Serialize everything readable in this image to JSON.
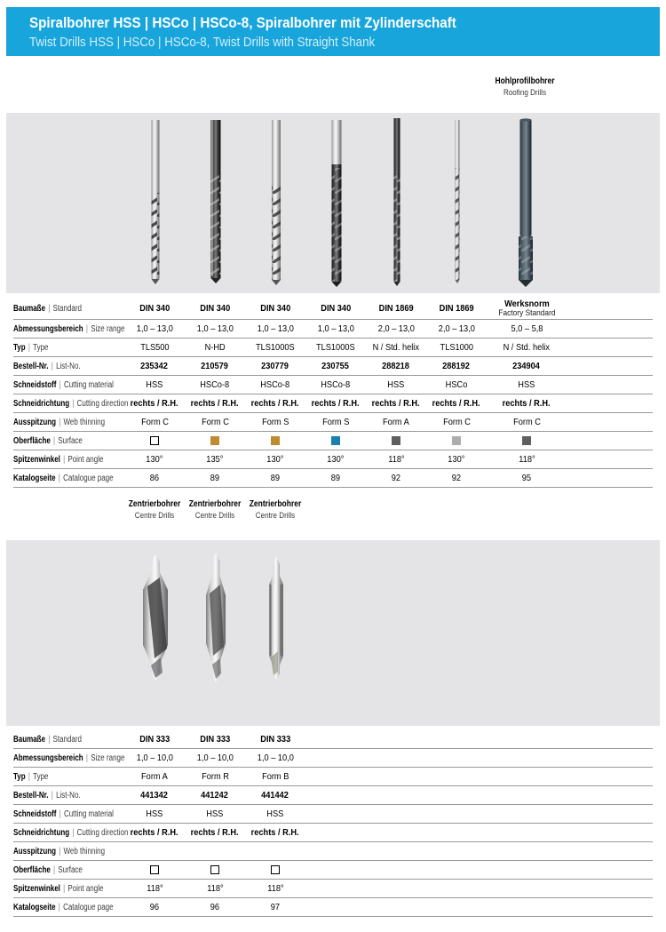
{
  "sep": "|",
  "header": {
    "title_de": "Spiralbohrer HSS | HSCo | HSCo-8, Spiralbohrer mit Zylinderschaft",
    "title_en": "Twist Drills HSS | HSCo | HSCo-8, Twist Drills with Straight Shank",
    "accent": "#18A5DC"
  },
  "labels": {
    "roofing_de": "Hohlprofilbohrer",
    "roofing_en": "Roofing Drills",
    "centre_de": "Zentrierbohrer",
    "centre_en": "Centre Drills"
  },
  "table1": {
    "col_count": 7,
    "rows": [
      {
        "de": "Baumaße",
        "en": "Standard",
        "type": "text",
        "bold": true,
        "values": [
          "DIN 340",
          "DIN 340",
          "DIN 340",
          "DIN 340",
          "DIN 1869",
          "DIN 1869",
          {
            "de": "Werksnorm",
            "en": "Factory Standard"
          }
        ]
      },
      {
        "de": "Abmessungsbereich",
        "en": "Size range",
        "type": "text",
        "bold": false,
        "values": [
          "1,0 – 13,0",
          "1,0 – 13,0",
          "1,0 – 13,0",
          "1,0 – 13,0",
          "2,0 – 13,0",
          "2,0 – 13,0",
          "5,0 – 5,8"
        ]
      },
      {
        "de": "Typ",
        "en": "Type",
        "type": "text",
        "bold": false,
        "values": [
          "TLS500",
          "N-HD",
          "TLS1000S",
          "TLS1000S",
          "N / Std. helix",
          "TLS1000",
          "N / Std. helix"
        ]
      },
      {
        "de": "Bestell-Nr.",
        "en": "List-No.",
        "type": "text",
        "bold": true,
        "values": [
          "235342",
          "210579",
          "230779",
          "230755",
          "288218",
          "288192",
          "234904"
        ]
      },
      {
        "de": "Schneidstoff",
        "en": "Cutting material",
        "type": "text",
        "bold": false,
        "values": [
          "HSS",
          "HSCo-8",
          "HSCo-8",
          "HSCo-8",
          "HSS",
          "HSCo",
          "HSS"
        ]
      },
      {
        "de": "Schneidrichtung",
        "en": "Cutting direction",
        "type": "text",
        "bold": true,
        "values": [
          "rechts / R.H.",
          "rechts / R.H.",
          "rechts / R.H.",
          "rechts / R.H.",
          "rechts / R.H.",
          "rechts / R.H.",
          "rechts / R.H."
        ]
      },
      {
        "de": "Ausspitzung",
        "en": "Web thinning",
        "type": "text",
        "bold": false,
        "values": [
          "Form C",
          "Form C",
          "Form S",
          "Form S",
          "Form A",
          "Form C",
          "Form C"
        ]
      },
      {
        "de": "Oberfläche",
        "en": "Surface",
        "type": "swatch",
        "bold": false,
        "values": [
          "#FFFFFF",
          "#BE8B31",
          "#BE8B31",
          "#1B7FAF",
          "#5F5F5F",
          "#ADADAD",
          "#5F5F5F"
        ]
      },
      {
        "de": "Spitzenwinkel",
        "en": "Point angle",
        "type": "text",
        "bold": false,
        "values": [
          "130°",
          "135°",
          "130°",
          "130°",
          "118°",
          "130°",
          "118°"
        ]
      },
      {
        "de": "Katalogseite",
        "en": "Catalogue page",
        "type": "text",
        "bold": false,
        "values": [
          "86",
          "89",
          "89",
          "89",
          "92",
          "92",
          "95"
        ]
      }
    ]
  },
  "table2": {
    "col_count": 7,
    "rows": [
      {
        "de": "Baumaße",
        "en": "Standard",
        "type": "text",
        "bold": true,
        "values": [
          "DIN 333",
          "DIN 333",
          "DIN 333"
        ]
      },
      {
        "de": "Abmessungsbereich",
        "en": "Size range",
        "type": "text",
        "bold": false,
        "values": [
          "1,0 – 10,0",
          "1,0 – 10,0",
          "1,0 – 10,0"
        ]
      },
      {
        "de": "Typ",
        "en": "Type",
        "type": "text",
        "bold": false,
        "values": [
          "Form A",
          "Form R",
          "Form B"
        ]
      },
      {
        "de": "Bestell-Nr.",
        "en": "List-No.",
        "type": "text",
        "bold": true,
        "values": [
          "441342",
          "441242",
          "441442"
        ]
      },
      {
        "de": "Schneidstoff",
        "en": "Cutting material",
        "type": "text",
        "bold": false,
        "values": [
          "HSS",
          "HSS",
          "HSS"
        ]
      },
      {
        "de": "Schneidrichtung",
        "en": "Cutting direction",
        "type": "text",
        "bold": true,
        "values": [
          "rechts / R.H.",
          "rechts / R.H.",
          "rechts / R.H."
        ]
      },
      {
        "de": "Ausspitzung",
        "en": "Web thinning",
        "type": "text",
        "bold": false,
        "values": []
      },
      {
        "de": "Oberfläche",
        "en": "Surface",
        "type": "swatch",
        "bold": false,
        "values": [
          "#FFFFFF",
          "#FFFFFF",
          "#FFFFFF"
        ]
      },
      {
        "de": "Spitzenwinkel",
        "en": "Point angle",
        "type": "text",
        "bold": false,
        "values": [
          "118°",
          "118°",
          "118°"
        ]
      },
      {
        "de": "Katalogseite",
        "en": "Catalogue page",
        "type": "text",
        "bold": false,
        "values": [
          "96",
          "96",
          "97"
        ]
      }
    ]
  }
}
